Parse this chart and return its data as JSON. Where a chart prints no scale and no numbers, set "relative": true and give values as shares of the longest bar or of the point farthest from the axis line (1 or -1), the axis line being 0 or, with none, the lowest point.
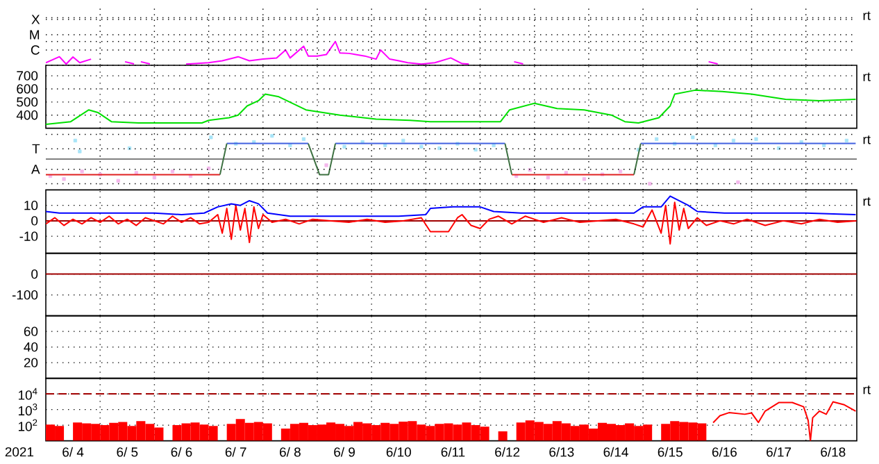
{
  "chart_data": [
    {
      "type": "line",
      "relative": true,
      "ylim": [
        0,
        2.57
      ],
      "grid": true,
      "tick_labels": "y",
      "annotations": [
        "C",
        "M",
        "X",
        "rt"
      ],
      "xlim": [
        "2021-06-04T00:00",
        "2021-06-18T22:30"
      ],
      "xticks": [
        {
          "value": "2021-06-05T00:00",
          "label": null
        },
        {
          "value": "2021-06-06T00:00",
          "label": null
        },
        {
          "value": "2021-06-07T00:00",
          "label": null
        },
        {
          "value": "2021-06-08T00:00",
          "label": null
        },
        {
          "value": "2021-06-09T00:00",
          "label": null
        },
        {
          "value": "2021-06-10T00:00",
          "label": null
        },
        {
          "value": "2021-06-11T00:00",
          "label": null
        },
        {
          "value": "2021-06-12T00:00",
          "label": null
        },
        {
          "value": "2021-06-13T00:00",
          "label": null
        },
        {
          "value": "2021-06-14T00:00",
          "label": null
        },
        {
          "value": "2021-06-15T00:00",
          "label": null
        },
        {
          "value": "2021-06-16T00:00",
          "label": null
        },
        {
          "value": "2021-06-17T00:00",
          "label": null
        },
        {
          "value": "2021-06-18T00:00",
          "label": null
        }
      ],
      "series": [
        {
          "color": "#ff00ff",
          "x": [
            "2021-06-04T00:00",
            "2021-06-04T06:00",
            "2021-06-04T09:00",
            "2021-06-04T12:00",
            "2021-06-04T15:00",
            "2021-06-04T20:00",
            "2021-06-04T23:00",
            "2021-06-05T11:00",
            "2021-06-05T15:00",
            "2021-06-05T16:00",
            "2021-06-05T18:00",
            "2021-06-05T22:00",
            "2021-06-05T23:00",
            "2021-06-06T14:00",
            "2021-06-06T18:00",
            "2021-06-07T00:00",
            "2021-06-07T06:00",
            "2021-06-07T13:00",
            "2021-06-07T18:00",
            "2021-06-08T00:00",
            "2021-06-08T06:00",
            "2021-06-08T10:00",
            "2021-06-08T12:00",
            "2021-06-08T18:00",
            "2021-06-08T20:00",
            "2021-06-09T00:00",
            "2021-06-09T04:00",
            "2021-06-09T08:00",
            "2021-06-09T10:00",
            "2021-06-09T14:00",
            "2021-06-09T21:00",
            "2021-06-10T02:00",
            "2021-06-10T04:00",
            "2021-06-10T08:00",
            "2021-06-10T12:00",
            "2021-06-10T16:00",
            "2021-06-10T22:00",
            "2021-06-11T04:00",
            "2021-06-11T11:00",
            "2021-06-11T16:00",
            "2021-06-11T19:00",
            "2021-06-11T20:00",
            "2021-06-12T15:00",
            "2021-06-12T19:00",
            "2021-06-12T20:00",
            "2021-06-16T05:00",
            "2021-06-16T09:00"
          ],
          "values": [
            0.11,
            0.36,
            0.05,
            0.35,
            0.11,
            0.26,
            null,
            0.15,
            0.06,
            null,
            0.15,
            0.06,
            null,
            0.05,
            0.07,
            0.11,
            0.19,
            0.36,
            0.19,
            0.26,
            0.31,
            0.64,
            0.31,
            0.8,
            0.39,
            0.39,
            0.45,
            1,
            0.52,
            0.5,
            0.39,
            0.26,
            0.64,
            0.26,
            0.19,
            0.11,
            0.05,
            0.11,
            0.31,
            0.07,
            0.05,
            null,
            0.15,
            0.06,
            null,
            0.15,
            0.06
          ]
        }
      ]
    },
    {
      "type": "line",
      "ylim": [
        300,
        780
      ],
      "yticks": [
        400,
        500,
        600,
        700
      ],
      "grid": true,
      "tick_labels": "y",
      "annotations": [
        "rt"
      ],
      "xlim": [
        "2021-06-04T00:00",
        "2021-06-18T22:30"
      ],
      "xticks": [
        {
          "value": "2021-06-05T00:00",
          "label": null
        },
        {
          "value": "2021-06-06T00:00",
          "label": null
        },
        {
          "value": "2021-06-07T00:00",
          "label": null
        },
        {
          "value": "2021-06-08T00:00",
          "label": null
        },
        {
          "value": "2021-06-09T00:00",
          "label": null
        },
        {
          "value": "2021-06-10T00:00",
          "label": null
        },
        {
          "value": "2021-06-11T00:00",
          "label": null
        },
        {
          "value": "2021-06-12T00:00",
          "label": null
        },
        {
          "value": "2021-06-13T00:00",
          "label": null
        },
        {
          "value": "2021-06-14T00:00",
          "label": null
        },
        {
          "value": "2021-06-15T00:00",
          "label": null
        },
        {
          "value": "2021-06-16T00:00",
          "label": null
        },
        {
          "value": "2021-06-17T00:00",
          "label": null
        },
        {
          "value": "2021-06-18T00:00",
          "label": null
        }
      ],
      "series": [
        {
          "color": "#00e000",
          "x": [
            "2021-06-04T00:00",
            "2021-06-04T11:00",
            "2021-06-04T19:00",
            "2021-06-04T23:00",
            "2021-06-05T05:00",
            "2021-06-05T17:00",
            "2021-06-06T09:00",
            "2021-06-06T21:00",
            "2021-06-07T00:00",
            "2021-06-07T09:00",
            "2021-06-07T13:00",
            "2021-06-07T17:00",
            "2021-06-07T22:00",
            "2021-06-08T01:00",
            "2021-06-08T07:00",
            "2021-06-08T19:00",
            "2021-06-09T10:00",
            "2021-06-10T02:00",
            "2021-06-10T17:00",
            "2021-06-11T02:00",
            "2021-06-12T00:00",
            "2021-06-12T09:00",
            "2021-06-12T13:00",
            "2021-06-13T00:00",
            "2021-06-13T10:00",
            "2021-06-13T22:00",
            "2021-06-14T10:00",
            "2021-06-14T16:00",
            "2021-06-14T22:00",
            "2021-06-15T07:00",
            "2021-06-15T12:00",
            "2021-06-15T14:00",
            "2021-06-15T23:00",
            "2021-06-16T11:00",
            "2021-06-17T00:00",
            "2021-06-17T15:00",
            "2021-06-18T06:00",
            "2021-06-18T22:00"
          ],
          "values": [
            330,
            350,
            440,
            420,
            350,
            340,
            340,
            340,
            360,
            380,
            400,
            470,
            510,
            560,
            540,
            440,
            400,
            370,
            360,
            350,
            350,
            350,
            440,
            490,
            450,
            440,
            400,
            350,
            340,
            380,
            470,
            560,
            590,
            580,
            560,
            520,
            510,
            520
          ]
        }
      ]
    },
    {
      "type": "line",
      "relative": true,
      "ylim": [
        -1.25,
        1.25
      ],
      "grid": true,
      "tick_labels": "y",
      "annotations": [
        "A",
        "T",
        "rt"
      ],
      "ref_lines": [
        {
          "axis": "y",
          "value": 0,
          "color": "#808080"
        }
      ],
      "xlim": [
        "2021-06-04T00:00",
        "2021-06-18T22:30"
      ],
      "xticks": [
        {
          "value": "2021-06-05T00:00",
          "label": null
        },
        {
          "value": "2021-06-06T00:00",
          "label": null
        },
        {
          "value": "2021-06-07T00:00",
          "label": null
        },
        {
          "value": "2021-06-08T00:00",
          "label": null
        },
        {
          "value": "2021-06-09T00:00",
          "label": null
        },
        {
          "value": "2021-06-10T00:00",
          "label": null
        },
        {
          "value": "2021-06-11T00:00",
          "label": null
        },
        {
          "value": "2021-06-12T00:00",
          "label": null
        },
        {
          "value": "2021-06-13T00:00",
          "label": null
        },
        {
          "value": "2021-06-14T00:00",
          "label": null
        },
        {
          "value": "2021-06-15T00:00",
          "label": null
        },
        {
          "value": "2021-06-16T00:00",
          "label": null
        },
        {
          "value": "2021-06-17T00:00",
          "label": null
        },
        {
          "value": "2021-06-18T00:00",
          "label": null
        }
      ],
      "series": [
        {
          "type": "scatter",
          "marker": "square",
          "color": "#a8e4f8",
          "x": [
            "2021-06-04T13:00",
            "2021-06-04T15:00",
            "2021-06-05T13:00",
            "2021-06-07T01:00",
            "2021-06-07T12:00",
            "2021-06-07T20:00",
            "2021-06-08T04:00",
            "2021-06-08T12:00",
            "2021-06-08T18:00",
            "2021-06-09T12:00",
            "2021-06-09T20:00",
            "2021-06-10T06:00",
            "2021-06-10T14:00",
            "2021-06-10T22:00",
            "2021-06-11T06:00",
            "2021-06-11T14:00",
            "2021-06-11T22:00",
            "2021-06-12T06:00",
            "2021-06-14T22:00",
            "2021-06-15T06:00",
            "2021-06-15T14:00",
            "2021-06-15T22:00",
            "2021-06-16T08:00",
            "2021-06-16T16:00",
            "2021-06-17T02:00",
            "2021-06-17T12:00",
            "2021-06-17T22:00",
            "2021-06-18T08:00",
            "2021-06-18T18:00"
          ],
          "values": [
            0.75,
            0.31,
            0.44,
            0.88,
            0.62,
            0.69,
            0.94,
            0.56,
            0.81,
            0.5,
            0.69,
            0.56,
            0.75,
            0.5,
            0.44,
            0.62,
            0.38,
            0.56,
            0.38,
            0.81,
            0.62,
            0.88,
            0.56,
            0.75,
            0.81,
            0.44,
            0.69,
            0.56,
            0.75
          ]
        },
        {
          "type": "scatter",
          "marker": "square",
          "color": "#f4b8ec",
          "x": [
            "2021-06-04T02:00",
            "2021-06-04T08:00",
            "2021-06-04T16:00",
            "2021-06-05T00:00",
            "2021-06-05T08:00",
            "2021-06-05T16:00",
            "2021-06-06T00:00",
            "2021-06-06T08:00",
            "2021-06-06T16:00",
            "2021-06-07T00:00",
            "2021-06-09T04:00",
            "2021-06-12T16:00",
            "2021-06-12T22:00",
            "2021-06-13T06:00",
            "2021-06-13T14:00",
            "2021-06-13T22:00",
            "2021-06-14T06:00",
            "2021-06-14T14:00",
            "2021-06-15T03:00",
            "2021-06-16T18:00"
          ],
          "values": [
            -0.69,
            -0.81,
            -0.5,
            -0.62,
            -0.88,
            -0.56,
            -0.75,
            -0.5,
            -0.69,
            -0.38,
            -0.25,
            -0.69,
            -0.44,
            -0.75,
            -0.56,
            -0.81,
            -0.62,
            -0.5,
            -1,
            -0.94
          ]
        },
        {
          "color": "#4060e0",
          "x": [
            "2021-06-07T08:00",
            "2021-06-08T20:00",
            "2021-06-08T21:00",
            "2021-06-09T08:00",
            "2021-06-12T11:00",
            "2021-06-12T12:00",
            "2021-06-14T23:00",
            "2021-06-18T22:00"
          ],
          "values": [
            0.63,
            0.63,
            null,
            0.63,
            0.63,
            null,
            0.63,
            0.63
          ]
        },
        {
          "color": "#e02020",
          "x": [
            "2021-06-04T00:00",
            "2021-06-07T05:00",
            "2021-06-07T06:00",
            "2021-06-12T14:00",
            "2021-06-14T20:00"
          ],
          "values": [
            -0.63,
            -0.63,
            null,
            -0.63,
            -0.63
          ]
        },
        {
          "color": "#3c7040",
          "x": [
            "2021-06-07T05:00",
            "2021-06-07T08:00",
            "2021-06-07T09:00",
            "2021-06-08T20:00",
            "2021-06-09T01:00",
            "2021-06-09T05:00",
            "2021-06-09T08:00",
            "2021-06-09T09:00",
            "2021-06-12T11:00",
            "2021-06-12T14:00",
            "2021-06-12T15:00",
            "2021-06-14T20:00",
            "2021-06-14T23:00"
          ],
          "values": [
            -0.63,
            0.63,
            null,
            0.63,
            -0.63,
            -0.63,
            0.63,
            null,
            0.63,
            -0.63,
            null,
            -0.63,
            0.63
          ]
        }
      ]
    },
    {
      "type": "line",
      "ylim": [
        -21,
        20
      ],
      "yticks": [
        -10,
        0,
        10
      ],
      "grid": true,
      "tick_labels": "y",
      "annotations": [
        "rt"
      ],
      "ref_lines": [
        {
          "axis": "y",
          "value": 0,
          "color": "#a00000"
        }
      ],
      "xlim": [
        "2021-06-04T00:00",
        "2021-06-18T22:30"
      ],
      "xticks": [
        {
          "value": "2021-06-05T00:00",
          "label": null
        },
        {
          "value": "2021-06-06T00:00",
          "label": null
        },
        {
          "value": "2021-06-07T00:00",
          "label": null
        },
        {
          "value": "2021-06-08T00:00",
          "label": null
        },
        {
          "value": "2021-06-09T00:00",
          "label": null
        },
        {
          "value": "2021-06-10T00:00",
          "label": null
        },
        {
          "value": "2021-06-11T00:00",
          "label": null
        },
        {
          "value": "2021-06-12T00:00",
          "label": null
        },
        {
          "value": "2021-06-13T00:00",
          "label": null
        },
        {
          "value": "2021-06-14T00:00",
          "label": null
        },
        {
          "value": "2021-06-15T00:00",
          "label": null
        },
        {
          "value": "2021-06-16T00:00",
          "label": null
        },
        {
          "value": "2021-06-17T00:00",
          "label": null
        },
        {
          "value": "2021-06-18T00:00",
          "label": null
        }
      ],
      "series": [
        {
          "color": "#ff0000",
          "x": [
            "2021-06-04T00:00",
            "2021-06-04T04:00",
            "2021-06-04T08:00",
            "2021-06-04T12:00",
            "2021-06-04T16:00",
            "2021-06-04T20:00",
            "2021-06-05T00:00",
            "2021-06-05T04:00",
            "2021-06-05T08:00",
            "2021-06-05T12:00",
            "2021-06-05T16:00",
            "2021-06-05T20:00",
            "2021-06-06T00:00",
            "2021-06-06T04:00",
            "2021-06-06T08:00",
            "2021-06-06T12:00",
            "2021-06-06T16:00",
            "2021-06-06T20:00",
            "2021-06-07T00:00",
            "2021-06-07T04:00",
            "2021-06-07T06:00",
            "2021-06-07T08:00",
            "2021-06-07T10:00",
            "2021-06-07T12:00",
            "2021-06-07T14:00",
            "2021-06-07T16:00",
            "2021-06-07T18:00",
            "2021-06-07T20:00",
            "2021-06-07T22:00",
            "2021-06-08T00:00",
            "2021-06-08T04:00",
            "2021-06-08T10:00",
            "2021-06-08T16:00",
            "2021-06-08T22:00",
            "2021-06-09T06:00",
            "2021-06-09T14:00",
            "2021-06-09T22:00",
            "2021-06-10T06:00",
            "2021-06-10T14:00",
            "2021-06-10T22:00",
            "2021-06-11T02:00",
            "2021-06-11T06:00",
            "2021-06-11T10:00",
            "2021-06-11T14:00",
            "2021-06-11T16:00",
            "2021-06-11T20:00",
            "2021-06-12T00:00",
            "2021-06-12T04:00",
            "2021-06-12T08:00",
            "2021-06-12T14:00",
            "2021-06-12T20:00",
            "2021-06-13T04:00",
            "2021-06-13T12:00",
            "2021-06-13T20:00",
            "2021-06-14T04:00",
            "2021-06-14T12:00",
            "2021-06-14T20:00",
            "2021-06-15T00:00",
            "2021-06-15T04:00",
            "2021-06-15T08:00",
            "2021-06-15T10:00",
            "2021-06-15T12:00",
            "2021-06-15T14:00",
            "2021-06-15T16:00",
            "2021-06-15T18:00",
            "2021-06-15T20:00",
            "2021-06-16T00:00",
            "2021-06-16T04:00",
            "2021-06-16T10:00",
            "2021-06-16T16:00",
            "2021-06-16T22:00",
            "2021-06-17T06:00",
            "2021-06-17T14:00",
            "2021-06-17T22:00",
            "2021-06-18T06:00",
            "2021-06-18T14:00",
            "2021-06-18T22:00"
          ],
          "values": [
            -2,
            2,
            -3,
            1,
            -2,
            2,
            -1,
            3,
            -2,
            1,
            -3,
            2,
            0,
            -2,
            3,
            -1,
            2,
            -2,
            -1,
            4,
            -8,
            8,
            -12,
            10,
            -6,
            8,
            -14,
            9,
            -5,
            4,
            -1,
            1,
            -2,
            1,
            0,
            -1,
            1,
            -1,
            0,
            2,
            -7,
            -7,
            -7,
            2,
            4,
            -3,
            -5,
            1,
            3,
            -2,
            3,
            -1,
            2,
            -1,
            0,
            1,
            -2,
            -4,
            7,
            -8,
            10,
            -15,
            12,
            -6,
            8,
            -5,
            2,
            -3,
            0,
            -2,
            1,
            -3,
            0,
            -2,
            1,
            -1,
            0
          ]
        },
        {
          "color": "#0000ff",
          "x": [
            "2021-06-04T00:00",
            "2021-06-04T06:00",
            "2021-06-04T18:00",
            "2021-06-05T12:00",
            "2021-06-06T00:00",
            "2021-06-06T12:00",
            "2021-06-06T22:00",
            "2021-06-07T04:00",
            "2021-06-07T10:00",
            "2021-06-07T14:00",
            "2021-06-07T18:00",
            "2021-06-07T22:00",
            "2021-06-08T02:00",
            "2021-06-08T12:00",
            "2021-06-09T12:00",
            "2021-06-10T12:00",
            "2021-06-11T00:00",
            "2021-06-11T02:00",
            "2021-06-11T12:00",
            "2021-06-12T00:00",
            "2021-06-12T06:00",
            "2021-06-12T18:00",
            "2021-06-13T12:00",
            "2021-06-14T12:00",
            "2021-06-14T20:00",
            "2021-06-15T00:00",
            "2021-06-15T08:00",
            "2021-06-15T12:00",
            "2021-06-15T16:00",
            "2021-06-15T20:00",
            "2021-06-16T00:00",
            "2021-06-16T12:00",
            "2021-06-17T12:00",
            "2021-06-18T00:00",
            "2021-06-18T22:00"
          ],
          "values": [
            6,
            5,
            5,
            5,
            5,
            4,
            5,
            9,
            11,
            10,
            13,
            11,
            5,
            3,
            3,
            3,
            4,
            8,
            9,
            9,
            6,
            5,
            5,
            5,
            5,
            9,
            9,
            16,
            13,
            10,
            6,
            5,
            5,
            5,
            4
          ]
        }
      ]
    },
    {
      "type": "line",
      "ylim": [
        -200,
        100
      ],
      "yticks": [
        -100,
        0
      ],
      "grid": true,
      "tick_labels": "y",
      "ref_lines": [
        {
          "axis": "y",
          "value": 0,
          "color": "#a00000"
        }
      ],
      "xlim": [
        "2021-06-04T00:00",
        "2021-06-18T22:30"
      ],
      "xticks": [
        {
          "value": "2021-06-05T00:00",
          "label": null
        },
        {
          "value": "2021-06-06T00:00",
          "label": null
        },
        {
          "value": "2021-06-07T00:00",
          "label": null
        },
        {
          "value": "2021-06-08T00:00",
          "label": null
        },
        {
          "value": "2021-06-09T00:00",
          "label": null
        },
        {
          "value": "2021-06-10T00:00",
          "label": null
        },
        {
          "value": "2021-06-11T00:00",
          "label": null
        },
        {
          "value": "2021-06-12T00:00",
          "label": null
        },
        {
          "value": "2021-06-13T00:00",
          "label": null
        },
        {
          "value": "2021-06-14T00:00",
          "label": null
        },
        {
          "value": "2021-06-15T00:00",
          "label": null
        },
        {
          "value": "2021-06-16T00:00",
          "label": null
        },
        {
          "value": "2021-06-17T00:00",
          "label": null
        },
        {
          "value": "2021-06-18T00:00",
          "label": null
        }
      ]
    },
    {
      "type": "line",
      "ylim": [
        0,
        80
      ],
      "yticks": [
        20,
        40,
        60
      ],
      "grid": true,
      "tick_labels": "y",
      "xlim": [
        "2021-06-04T00:00",
        "2021-06-18T22:30"
      ],
      "xticks": [
        {
          "value": "2021-06-05T00:00",
          "label": null
        },
        {
          "value": "2021-06-06T00:00",
          "label": null
        },
        {
          "value": "2021-06-07T00:00",
          "label": null
        },
        {
          "value": "2021-06-08T00:00",
          "label": null
        },
        {
          "value": "2021-06-09T00:00",
          "label": null
        },
        {
          "value": "2021-06-10T00:00",
          "label": null
        },
        {
          "value": "2021-06-11T00:00",
          "label": null
        },
        {
          "value": "2021-06-12T00:00",
          "label": null
        },
        {
          "value": "2021-06-13T00:00",
          "label": null
        },
        {
          "value": "2021-06-14T00:00",
          "label": null
        },
        {
          "value": "2021-06-15T00:00",
          "label": null
        },
        {
          "value": "2021-06-16T00:00",
          "label": null
        },
        {
          "value": "2021-06-17T00:00",
          "label": null
        },
        {
          "value": "2021-06-18T00:00",
          "label": null
        }
      ]
    },
    {
      "type": "bar",
      "log": "y",
      "ylim": [
        10,
        100000
      ],
      "yticks": [
        {
          "value": 100,
          "label": "10$^{2}$"
        },
        {
          "value": 1000,
          "label": "10$^{3}$"
        },
        {
          "value": 10000,
          "label": "10$^{4}$"
        }
      ],
      "grid": true,
      "xlabel": "2021",
      "annotations": [
        "rt"
      ],
      "ref_lines": [
        {
          "axis": "y",
          "value": 10000,
          "color": "#a00000",
          "line_style": "dashed"
        }
      ],
      "xlim": [
        "2021-06-04T00:00",
        "2021-06-18T22:30"
      ],
      "xticks": [
        {
          "value": "2021-06-04T12:00",
          "label": "6/ 4"
        },
        {
          "value": "2021-06-05T00:00",
          "label": null
        },
        {
          "value": "2021-06-05T12:00",
          "label": "6/ 5"
        },
        {
          "value": "2021-06-06T00:00",
          "label": null
        },
        {
          "value": "2021-06-06T12:00",
          "label": "6/ 6"
        },
        {
          "value": "2021-06-07T00:00",
          "label": null
        },
        {
          "value": "2021-06-07T12:00",
          "label": "6/ 7"
        },
        {
          "value": "2021-06-08T00:00",
          "label": null
        },
        {
          "value": "2021-06-08T12:00",
          "label": "6/ 8"
        },
        {
          "value": "2021-06-09T00:00",
          "label": null
        },
        {
          "value": "2021-06-09T12:00",
          "label": "6/ 9"
        },
        {
          "value": "2021-06-10T00:00",
          "label": null
        },
        {
          "value": "2021-06-10T12:00",
          "label": "6/10"
        },
        {
          "value": "2021-06-11T00:00",
          "label": null
        },
        {
          "value": "2021-06-11T12:00",
          "label": "6/11"
        },
        {
          "value": "2021-06-12T00:00",
          "label": null
        },
        {
          "value": "2021-06-12T12:00",
          "label": "6/12"
        },
        {
          "value": "2021-06-13T00:00",
          "label": null
        },
        {
          "value": "2021-06-13T12:00",
          "label": "6/13"
        },
        {
          "value": "2021-06-14T00:00",
          "label": null
        },
        {
          "value": "2021-06-14T12:00",
          "label": "6/14"
        },
        {
          "value": "2021-06-15T00:00",
          "label": null
        },
        {
          "value": "2021-06-15T12:00",
          "label": "6/15"
        },
        {
          "value": "2021-06-16T00:00",
          "label": null
        },
        {
          "value": "2021-06-16T12:00",
          "label": "6/16"
        },
        {
          "value": "2021-06-17T00:00",
          "label": null
        },
        {
          "value": "2021-06-17T12:00",
          "label": "6/17"
        },
        {
          "value": "2021-06-18T00:00",
          "label": null
        },
        {
          "value": "2021-06-18T12:00",
          "label": "6/18"
        }
      ],
      "series": [
        {
          "color": "#ff0000",
          "x": [
            "2021-06-04T02:00",
            "2021-06-04T06:00",
            "2021-06-04T10:00",
            "2021-06-04T14:00",
            "2021-06-04T18:00",
            "2021-06-04T22:00",
            "2021-06-05T02:00",
            "2021-06-05T06:00",
            "2021-06-05T10:00",
            "2021-06-05T14:00",
            "2021-06-05T18:00",
            "2021-06-05T22:00",
            "2021-06-06T02:00",
            "2021-06-06T06:00",
            "2021-06-06T10:00",
            "2021-06-06T14:00",
            "2021-06-06T18:00",
            "2021-06-06T22:00",
            "2021-06-07T02:00",
            "2021-06-07T06:00",
            "2021-06-07T10:00",
            "2021-06-07T14:00",
            "2021-06-07T18:00",
            "2021-06-07T22:00",
            "2021-06-08T02:00",
            "2021-06-08T06:00",
            "2021-06-08T10:00",
            "2021-06-08T14:00",
            "2021-06-08T18:00",
            "2021-06-08T22:00",
            "2021-06-09T02:00",
            "2021-06-09T06:00",
            "2021-06-09T10:00",
            "2021-06-09T14:00",
            "2021-06-09T18:00",
            "2021-06-09T22:00",
            "2021-06-10T02:00",
            "2021-06-10T06:00",
            "2021-06-10T10:00",
            "2021-06-10T14:00",
            "2021-06-10T18:00",
            "2021-06-10T22:00",
            "2021-06-11T02:00",
            "2021-06-11T06:00",
            "2021-06-11T10:00",
            "2021-06-11T14:00",
            "2021-06-11T18:00",
            "2021-06-11T22:00",
            "2021-06-12T02:00",
            "2021-06-12T06:00",
            "2021-06-12T10:00",
            "2021-06-12T14:00",
            "2021-06-12T18:00",
            "2021-06-12T22:00",
            "2021-06-13T02:00",
            "2021-06-13T06:00",
            "2021-06-13T10:00",
            "2021-06-13T14:00",
            "2021-06-13T18:00",
            "2021-06-13T22:00",
            "2021-06-14T02:00",
            "2021-06-14T06:00",
            "2021-06-14T10:00",
            "2021-06-14T14:00",
            "2021-06-14T18:00",
            "2021-06-14T22:00",
            "2021-06-15T02:00",
            "2021-06-15T06:00",
            "2021-06-15T10:00",
            "2021-06-15T14:00",
            "2021-06-15T18:00",
            "2021-06-15T22:00",
            "2021-06-16T02:00"
          ],
          "values": [
            110,
            90,
            null,
            150,
            130,
            120,
            100,
            140,
            160,
            90,
            180,
            120,
            70,
            null,
            100,
            130,
            150,
            110,
            90,
            null,
            120,
            250,
            140,
            160,
            130,
            null,
            60,
            120,
            140,
            100,
            110,
            150,
            120,
            90,
            160,
            130,
            100,
            140,
            120,
            170,
            180,
            110,
            90,
            120,
            130,
            110,
            150,
            100,
            80,
            null,
            40,
            null,
            150,
            200,
            160,
            120,
            180,
            130,
            90,
            110,
            60,
            140,
            120,
            100,
            130,
            90,
            110,
            null,
            120,
            180,
            160,
            150,
            130
          ]
        },
        {
          "type": "line",
          "color": "#ff0000",
          "x": [
            "2021-06-16T07:00",
            "2021-06-16T10:00",
            "2021-06-16T14:00",
            "2021-06-16T21:00",
            "2021-06-17T00:00",
            "2021-06-17T03:00",
            "2021-06-17T06:00",
            "2021-06-17T12:00",
            "2021-06-17T18:00",
            "2021-06-17T23:00",
            "2021-06-18T01:00",
            "2021-06-18T02:00",
            "2021-06-18T03:00",
            "2021-06-18T06:00",
            "2021-06-18T09:00",
            "2021-06-18T12:00",
            "2021-06-18T17:00",
            "2021-06-18T22:00"
          ],
          "values": [
            145,
            400,
            630,
            500,
            600,
            150,
            800,
            2800,
            2800,
            1500,
            200,
            10,
            300,
            800,
            500,
            3100,
            2000,
            800
          ]
        }
      ]
    }
  ]
}
